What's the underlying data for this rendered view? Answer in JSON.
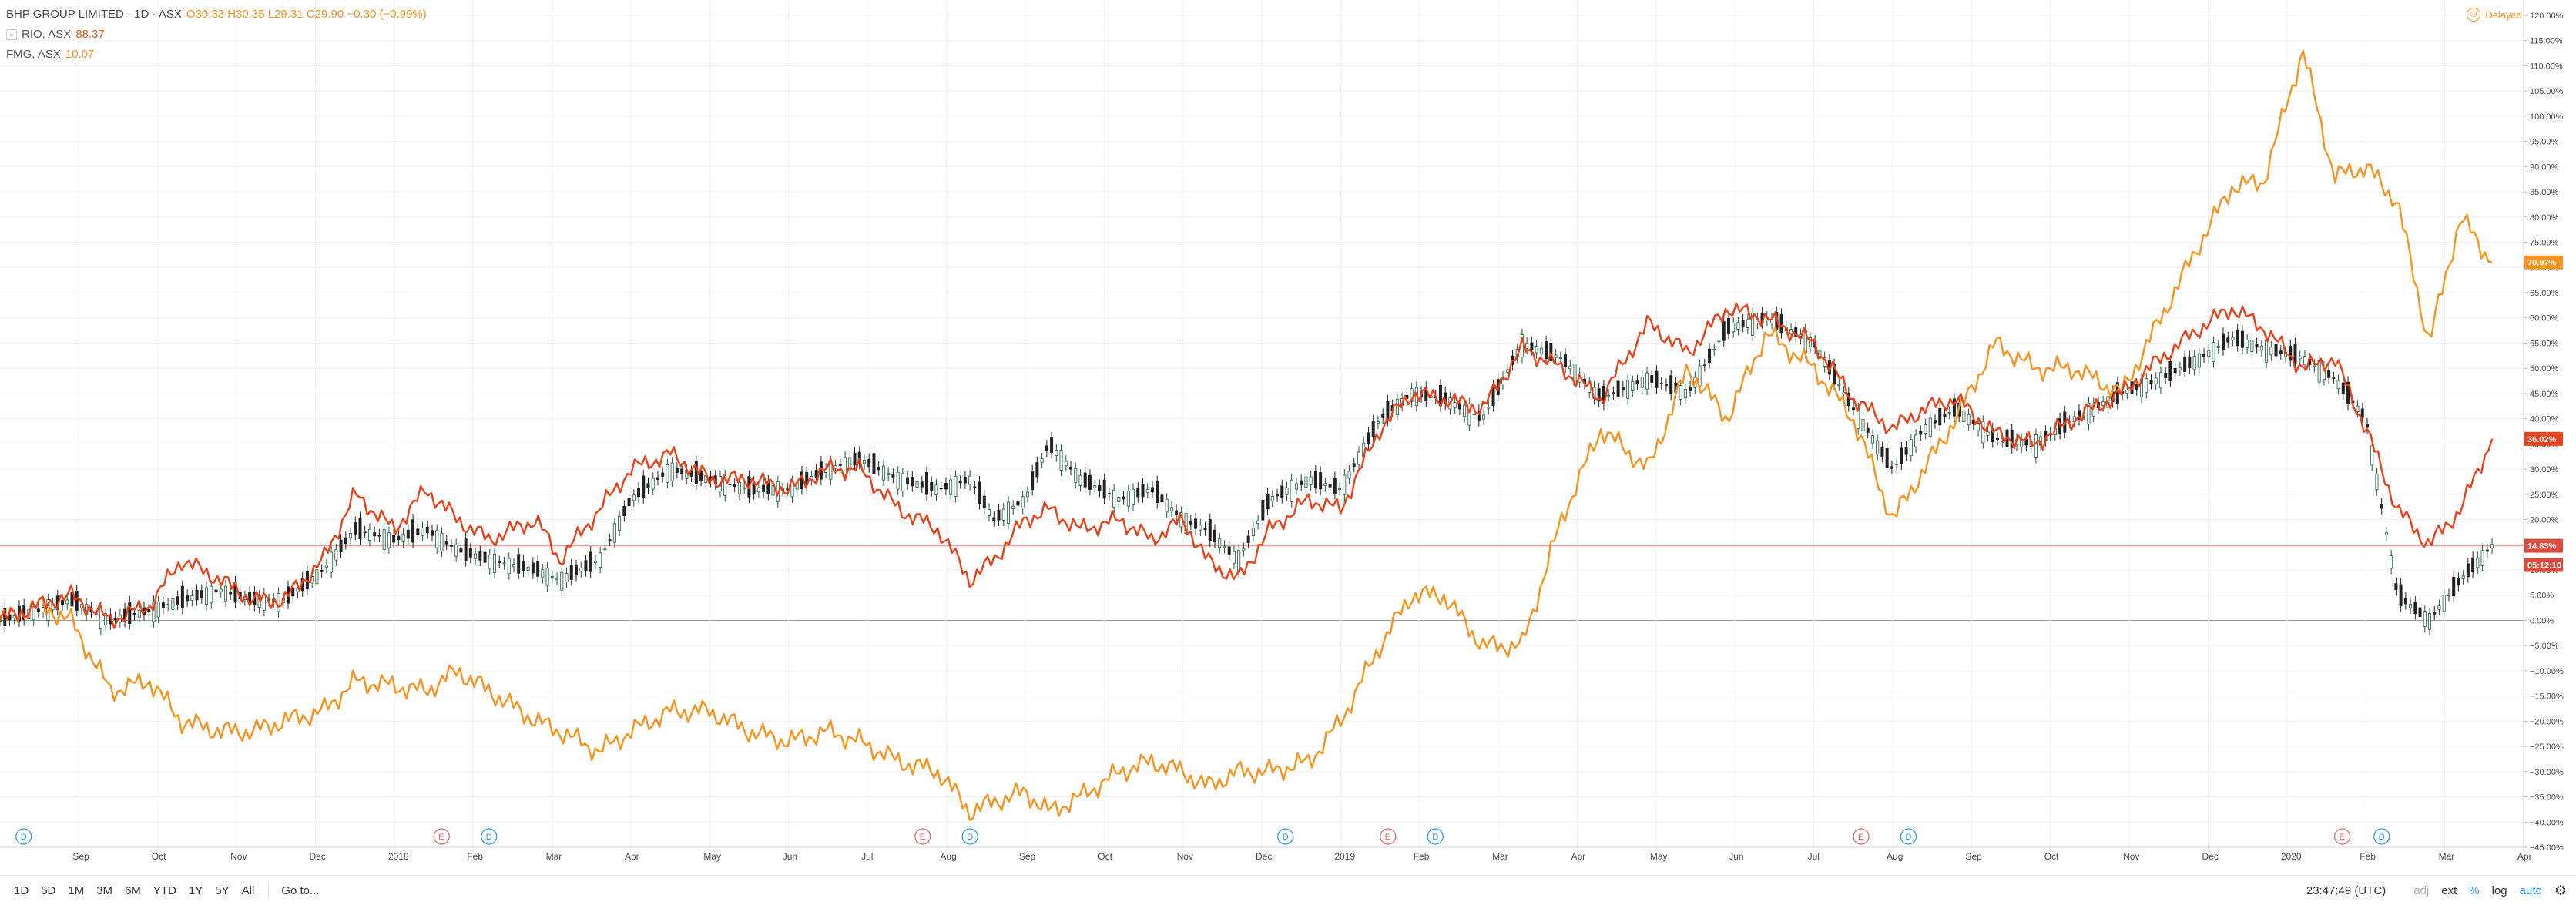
{
  "header": {
    "main_title": "BHP GROUP LIMITED · 1D · ASX",
    "main_ohlc": "O30.33 H30.35 L29.31 C29.90 −0.30 (−0.99%)",
    "series2_symbol": "RIO, ASX",
    "series2_value": "88.37",
    "series3_symbol": "FMG, ASX",
    "series3_value": "10.07",
    "delayed_label": "Delayed",
    "chevron_icon": "chevron-down-icon",
    "clock_icon": "clock-icon"
  },
  "colors": {
    "rio": "#e8421c",
    "fmg": "#f7931e",
    "candle_up": "#1d5b3b",
    "candle_down": "#222222",
    "grid": "#eef0f3",
    "baseline": "#999999",
    "hline": "#f0a8a0"
  },
  "chart_data": {
    "type": "line",
    "title": "BHP GROUP LIMITED · 1D · ASX",
    "xlabel": "",
    "ylabel": "",
    "ylim": [
      -45,
      120
    ],
    "y_ticks": [
      "120.00%",
      "115.00%",
      "110.00%",
      "105.00%",
      "100.00%",
      "95.00%",
      "90.00%",
      "85.00%",
      "80.00%",
      "75.00%",
      "70.00%",
      "65.00%",
      "60.00%",
      "55.00%",
      "50.00%",
      "45.00%",
      "40.00%",
      "35.00%",
      "30.00%",
      "25.00%",
      "20.00%",
      "15.00%",
      "10.00%",
      "5.00%",
      "0.00%",
      "−5.00%",
      "−10.00%",
      "−15.00%",
      "−20.00%",
      "−25.00%",
      "−30.00%",
      "−35.00%",
      "−40.00%",
      "−45.00%"
    ],
    "x_ticks": [
      "Sep",
      "Oct",
      "Nov",
      "Dec",
      "2018",
      "Feb",
      "Mar",
      "Apr",
      "May",
      "Jun",
      "Jul",
      "Aug",
      "Sep",
      "Oct",
      "Nov",
      "Dec",
      "2019",
      "Feb",
      "Mar",
      "Apr",
      "May",
      "Jun",
      "Jul",
      "Aug",
      "Sep",
      "Oct",
      "Nov",
      "Dec",
      "2020",
      "Feb",
      "Mar",
      "Apr"
    ],
    "x_range": [
      0,
      32
    ],
    "grid": true,
    "price_labels": [
      {
        "series": "FMG, ASX",
        "label": "70.97%",
        "value": 71.0
      },
      {
        "series": "RIO, ASX",
        "label": "36.02%",
        "value": 36.0
      },
      {
        "series": "BHP GROUP LIMITED",
        "label": "14.83%",
        "value": 14.8
      },
      {
        "series": "countdown",
        "label": "05:12:10",
        "value": 11.0
      }
    ],
    "events": [
      {
        "type": "D",
        "x": 0.3
      },
      {
        "type": "E",
        "x": 5.6
      },
      {
        "type": "D",
        "x": 6.2
      },
      {
        "type": "E",
        "x": 11.7
      },
      {
        "type": "D",
        "x": 12.3
      },
      {
        "type": "D",
        "x": 16.3
      },
      {
        "type": "E",
        "x": 17.6
      },
      {
        "type": "D",
        "x": 18.2
      },
      {
        "type": "E",
        "x": 23.6
      },
      {
        "type": "D",
        "x": 24.2
      },
      {
        "type": "E",
        "x": 29.7
      },
      {
        "type": "D",
        "x": 30.2
      }
    ],
    "series": [
      {
        "name": "RIO, ASX",
        "points": [
          [
            0,
            0
          ],
          [
            0.5,
            3
          ],
          [
            0.9,
            5
          ],
          [
            1.4,
            0
          ],
          [
            1.9,
            3
          ],
          [
            2.3,
            12
          ],
          [
            2.8,
            8
          ],
          [
            3.2,
            4
          ],
          [
            3.6,
            4
          ],
          [
            4.1,
            12
          ],
          [
            4.5,
            25
          ],
          [
            5.0,
            18
          ],
          [
            5.4,
            26
          ],
          [
            5.8,
            20
          ],
          [
            6.2,
            16
          ],
          [
            6.8,
            20
          ],
          [
            7.1,
            12
          ],
          [
            7.6,
            22
          ],
          [
            8.0,
            30
          ],
          [
            8.5,
            33
          ],
          [
            9.0,
            28
          ],
          [
            9.5,
            28
          ],
          [
            10.0,
            26
          ],
          [
            10.5,
            30
          ],
          [
            10.9,
            30
          ],
          [
            11.4,
            22
          ],
          [
            11.9,
            18
          ],
          [
            12.3,
            8
          ],
          [
            12.6,
            12
          ],
          [
            13.0,
            20
          ],
          [
            13.3,
            22
          ],
          [
            13.7,
            18
          ],
          [
            14.2,
            20
          ],
          [
            14.6,
            16
          ],
          [
            15.0,
            20
          ],
          [
            15.3,
            12
          ],
          [
            15.7,
            8
          ],
          [
            16.1,
            18
          ],
          [
            16.6,
            24
          ],
          [
            17.0,
            22
          ],
          [
            17.5,
            38
          ],
          [
            17.9,
            45
          ],
          [
            18.3,
            44
          ],
          [
            18.8,
            42
          ],
          [
            19.3,
            54
          ],
          [
            19.8,
            50
          ],
          [
            20.3,
            44
          ],
          [
            20.9,
            59
          ],
          [
            21.4,
            53
          ],
          [
            21.9,
            62
          ],
          [
            22.4,
            60
          ],
          [
            23.0,
            55
          ],
          [
            23.5,
            44
          ],
          [
            24.0,
            38
          ],
          [
            24.4,
            42
          ],
          [
            24.8,
            44
          ],
          [
            25.3,
            37
          ],
          [
            25.8,
            35
          ],
          [
            26.3,
            40
          ],
          [
            26.9,
            45
          ],
          [
            27.4,
            52
          ],
          [
            27.9,
            58
          ],
          [
            28.3,
            62
          ],
          [
            28.7,
            58
          ],
          [
            29.2,
            50
          ],
          [
            29.6,
            52
          ],
          [
            30.0,
            38
          ],
          [
            30.4,
            22
          ],
          [
            30.8,
            15
          ],
          [
            31.2,
            22
          ],
          [
            31.6,
            36
          ]
        ]
      },
      {
        "name": "FMG, ASX",
        "points": [
          [
            0,
            0
          ],
          [
            0.5,
            3
          ],
          [
            0.9,
            0
          ],
          [
            1.4,
            -14
          ],
          [
            1.9,
            -12
          ],
          [
            2.3,
            -20
          ],
          [
            2.8,
            -22
          ],
          [
            3.2,
            -22
          ],
          [
            3.6,
            -20
          ],
          [
            4.1,
            -18
          ],
          [
            4.5,
            -12
          ],
          [
            5.0,
            -13
          ],
          [
            5.4,
            -14
          ],
          [
            5.8,
            -10
          ],
          [
            6.2,
            -14
          ],
          [
            6.8,
            -20
          ],
          [
            7.1,
            -22
          ],
          [
            7.6,
            -26
          ],
          [
            8.0,
            -22
          ],
          [
            8.5,
            -18
          ],
          [
            9.0,
            -18
          ],
          [
            9.5,
            -22
          ],
          [
            10.0,
            -24
          ],
          [
            10.5,
            -22
          ],
          [
            10.9,
            -24
          ],
          [
            11.4,
            -28
          ],
          [
            11.9,
            -30
          ],
          [
            12.3,
            -38
          ],
          [
            12.6,
            -36
          ],
          [
            13.0,
            -34
          ],
          [
            13.3,
            -38
          ],
          [
            13.7,
            -35
          ],
          [
            14.2,
            -30
          ],
          [
            14.6,
            -28
          ],
          [
            15.0,
            -30
          ],
          [
            15.3,
            -33
          ],
          [
            15.7,
            -30
          ],
          [
            16.1,
            -30
          ],
          [
            16.6,
            -28
          ],
          [
            17.0,
            -20
          ],
          [
            17.5,
            -5
          ],
          [
            17.9,
            5
          ],
          [
            18.3,
            5
          ],
          [
            18.8,
            -5
          ],
          [
            19.3,
            -5
          ],
          [
            19.8,
            20
          ],
          [
            20.3,
            38
          ],
          [
            20.9,
            30
          ],
          [
            21.4,
            50
          ],
          [
            21.9,
            40
          ],
          [
            22.4,
            57
          ],
          [
            23.0,
            50
          ],
          [
            23.5,
            40
          ],
          [
            24.0,
            20
          ],
          [
            24.4,
            30
          ],
          [
            24.8,
            40
          ],
          [
            25.3,
            55
          ],
          [
            25.8,
            50
          ],
          [
            26.3,
            50
          ],
          [
            26.9,
            45
          ],
          [
            27.4,
            60
          ],
          [
            27.9,
            75
          ],
          [
            28.3,
            86
          ],
          [
            28.7,
            87
          ],
          [
            29.2,
            113
          ],
          [
            29.6,
            88
          ],
          [
            30.0,
            90
          ],
          [
            30.4,
            83
          ],
          [
            30.8,
            55
          ],
          [
            31.2,
            80
          ],
          [
            31.6,
            71
          ]
        ]
      },
      {
        "name": "BHP GROUP LIMITED",
        "points": [
          [
            0,
            0
          ],
          [
            0.5,
            2
          ],
          [
            0.9,
            4
          ],
          [
            1.4,
            0
          ],
          [
            1.9,
            2
          ],
          [
            2.3,
            4
          ],
          [
            2.8,
            6
          ],
          [
            3.2,
            4
          ],
          [
            3.6,
            4
          ],
          [
            4.1,
            10
          ],
          [
            4.5,
            18
          ],
          [
            5.0,
            16
          ],
          [
            5.4,
            18
          ],
          [
            5.8,
            14
          ],
          [
            6.2,
            12
          ],
          [
            6.8,
            10
          ],
          [
            7.1,
            8
          ],
          [
            7.6,
            12
          ],
          [
            8.0,
            24
          ],
          [
            8.5,
            30
          ],
          [
            9.0,
            28
          ],
          [
            9.5,
            26
          ],
          [
            10.0,
            26
          ],
          [
            10.5,
            30
          ],
          [
            10.9,
            32
          ],
          [
            11.4,
            28
          ],
          [
            11.9,
            26
          ],
          [
            12.3,
            28
          ],
          [
            12.6,
            20
          ],
          [
            13.0,
            24
          ],
          [
            13.3,
            35
          ],
          [
            13.7,
            28
          ],
          [
            14.2,
            24
          ],
          [
            14.6,
            26
          ],
          [
            15.0,
            20
          ],
          [
            15.3,
            18
          ],
          [
            15.7,
            12
          ],
          [
            16.1,
            24
          ],
          [
            16.6,
            28
          ],
          [
            17.0,
            26
          ],
          [
            17.5,
            40
          ],
          [
            17.9,
            45
          ],
          [
            18.3,
            44
          ],
          [
            18.8,
            40
          ],
          [
            19.3,
            55
          ],
          [
            19.8,
            52
          ],
          [
            20.3,
            44
          ],
          [
            20.9,
            48
          ],
          [
            21.4,
            45
          ],
          [
            21.9,
            58
          ],
          [
            22.4,
            60
          ],
          [
            23.0,
            55
          ],
          [
            23.5,
            42
          ],
          [
            24.0,
            30
          ],
          [
            24.4,
            38
          ],
          [
            24.8,
            42
          ],
          [
            25.3,
            36
          ],
          [
            25.8,
            35
          ],
          [
            26.3,
            40
          ],
          [
            26.9,
            45
          ],
          [
            27.4,
            48
          ],
          [
            27.9,
            52
          ],
          [
            28.3,
            56
          ],
          [
            28.7,
            54
          ],
          [
            29.2,
            52
          ],
          [
            29.6,
            48
          ],
          [
            30.0,
            40
          ],
          [
            30.4,
            5
          ],
          [
            30.8,
            0
          ],
          [
            31.2,
            8
          ],
          [
            31.6,
            14.8
          ]
        ]
      }
    ]
  },
  "bottom_bar": {
    "ranges": [
      "1D",
      "5D",
      "1M",
      "3M",
      "6M",
      "YTD",
      "1Y",
      "5Y",
      "All"
    ],
    "goto": "Go to...",
    "time": "23:47:49 (UTC)",
    "adj": "adj",
    "ext": "ext",
    "pct": "%",
    "log": "log",
    "auto": "auto",
    "settings_icon": "gear-icon"
  }
}
